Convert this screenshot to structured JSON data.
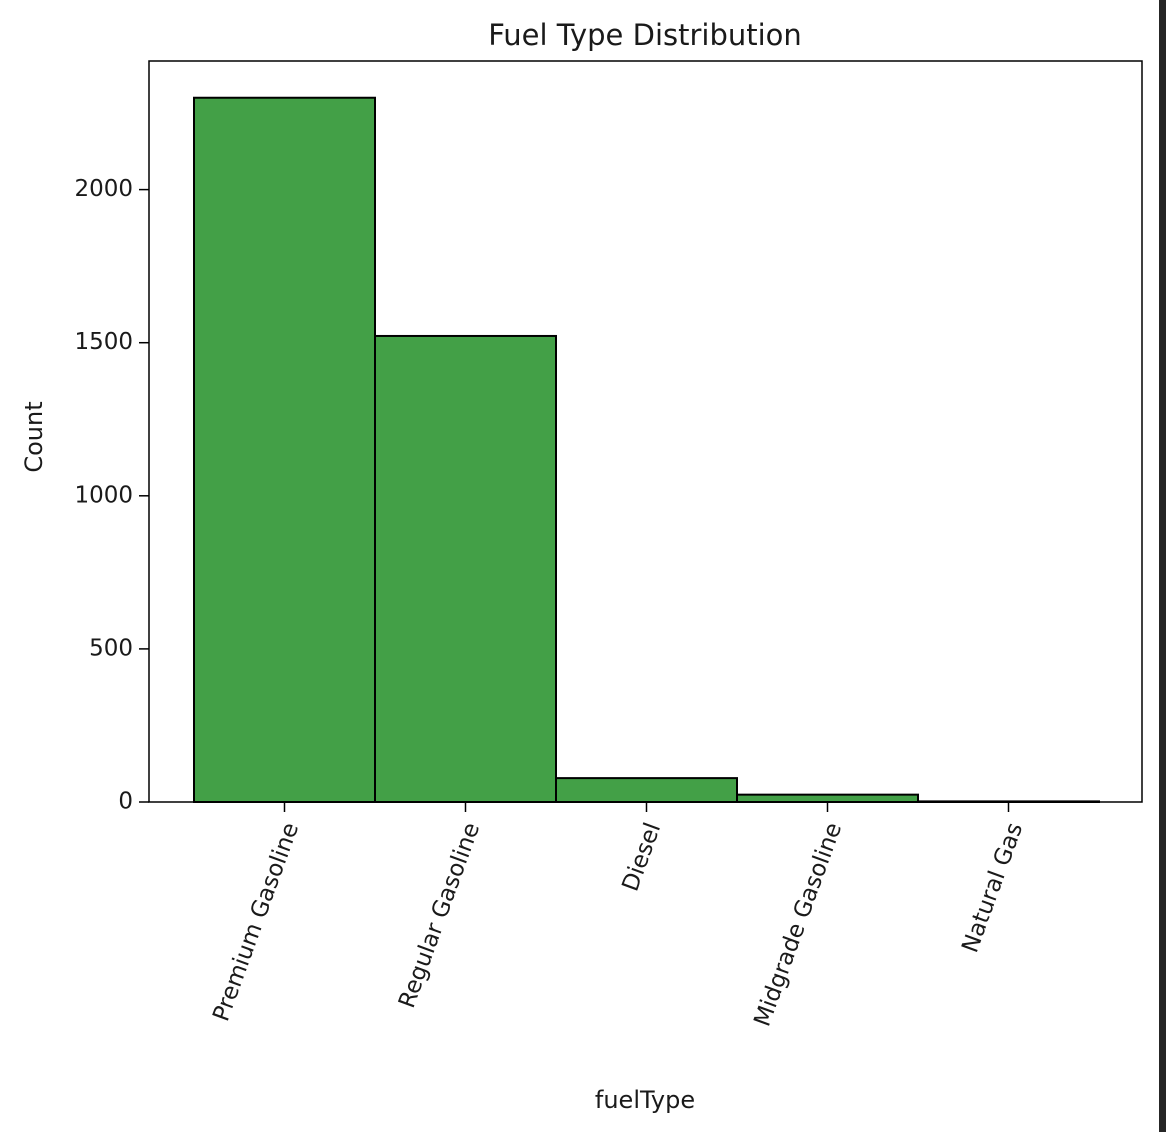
{
  "chart_data": {
    "type": "bar",
    "title": "Fuel Type Distribution",
    "xlabel": "fuelType",
    "ylabel": "Count",
    "categories": [
      "Premium Gasoline",
      "Regular Gasoline",
      "Diesel",
      "Midgrade Gasoline",
      "Natural Gas"
    ],
    "values": [
      2300,
      1522,
      78,
      24,
      2
    ],
    "yticks": [
      0,
      500,
      1000,
      1500,
      2000
    ],
    "ylim": [
      0,
      2420
    ],
    "grid": false,
    "legend": "none",
    "bar_color": "#43a047",
    "edge_color": "#000000"
  }
}
